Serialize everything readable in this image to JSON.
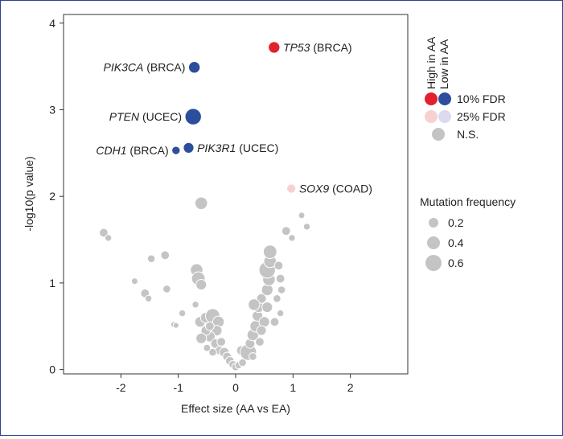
{
  "chart_data": {
    "type": "scatter",
    "title": "",
    "xlabel": "Effect size (AA vs EA)",
    "ylabel": "-log10(p value)",
    "xlim": [
      -3.0,
      3.0
    ],
    "ylim": [
      -0.05,
      4.1
    ],
    "xticks": [
      -2,
      -1,
      0,
      1,
      2
    ],
    "yticks": [
      0,
      1,
      2,
      3,
      4
    ],
    "grid": false,
    "colors": {
      "high_10fdr": "#e3202e",
      "low_10fdr": "#2d4e9c",
      "high_25fdr": "#f7d0d0",
      "low_25fdr": "#dcdaf0",
      "ns": "#c4c4c4"
    },
    "highlighted": [
      {
        "gene": "TP53",
        "cancer": "(BRCA)",
        "x": 0.67,
        "y": 3.72,
        "freq": 0.35,
        "category": "high_10fdr"
      },
      {
        "gene": "PIK3CA",
        "cancer": "(BRCA)",
        "x": -0.72,
        "y": 3.49,
        "freq": 0.35,
        "category": "low_10fdr"
      },
      {
        "gene": "PTEN",
        "cancer": "(UCEC)",
        "x": -0.74,
        "y": 2.92,
        "freq": 0.6,
        "category": "low_10fdr"
      },
      {
        "gene": "PIK3R1",
        "cancer": "(UCEC)",
        "x": -0.82,
        "y": 2.56,
        "freq": 0.3,
        "category": "low_10fdr"
      },
      {
        "gene": "CDH1",
        "cancer": "(BRCA)",
        "x": -1.04,
        "y": 2.53,
        "freq": 0.18,
        "category": "low_10fdr"
      },
      {
        "gene": "SOX9",
        "cancer": "(COAD)",
        "x": 0.97,
        "y": 2.09,
        "freq": 0.22,
        "category": "high_25fdr"
      }
    ],
    "background_points": [
      {
        "x": -0.6,
        "y": 1.92,
        "freq": 0.4
      },
      {
        "x": -2.3,
        "y": 1.58,
        "freq": 0.2
      },
      {
        "x": -2.22,
        "y": 1.52,
        "freq": 0.1
      },
      {
        "x": -1.23,
        "y": 1.32,
        "freq": 0.2
      },
      {
        "x": -1.47,
        "y": 1.28,
        "freq": 0.15
      },
      {
        "x": -1.76,
        "y": 1.02,
        "freq": 0.08
      },
      {
        "x": -1.58,
        "y": 0.88,
        "freq": 0.2
      },
      {
        "x": -1.52,
        "y": 0.82,
        "freq": 0.1
      },
      {
        "x": -1.2,
        "y": 0.93,
        "freq": 0.15
      },
      {
        "x": -0.93,
        "y": 0.65,
        "freq": 0.1
      },
      {
        "x": -1.08,
        "y": 0.52,
        "freq": 0.06
      },
      {
        "x": -1.04,
        "y": 0.51,
        "freq": 0.05
      },
      {
        "x": -0.68,
        "y": 1.15,
        "freq": 0.4
      },
      {
        "x": -0.65,
        "y": 1.05,
        "freq": 0.45
      },
      {
        "x": -0.6,
        "y": 0.98,
        "freq": 0.3
      },
      {
        "x": -0.7,
        "y": 0.75,
        "freq": 0.1
      },
      {
        "x": -0.62,
        "y": 0.55,
        "freq": 0.3
      },
      {
        "x": -0.52,
        "y": 0.6,
        "freq": 0.3
      },
      {
        "x": -0.4,
        "y": 0.62,
        "freq": 0.5
      },
      {
        "x": -0.3,
        "y": 0.55,
        "freq": 0.35
      },
      {
        "x": -0.33,
        "y": 0.45,
        "freq": 0.3
      },
      {
        "x": -0.45,
        "y": 0.38,
        "freq": 0.3
      },
      {
        "x": -0.52,
        "y": 0.45,
        "freq": 0.25
      },
      {
        "x": -0.6,
        "y": 0.36,
        "freq": 0.3
      },
      {
        "x": -0.35,
        "y": 0.3,
        "freq": 0.25
      },
      {
        "x": -0.25,
        "y": 0.32,
        "freq": 0.2
      },
      {
        "x": -0.28,
        "y": 0.22,
        "freq": 0.2
      },
      {
        "x": -0.2,
        "y": 0.2,
        "freq": 0.25
      },
      {
        "x": -0.15,
        "y": 0.15,
        "freq": 0.2
      },
      {
        "x": -0.1,
        "y": 0.1,
        "freq": 0.2
      },
      {
        "x": -0.05,
        "y": 0.06,
        "freq": 0.15
      },
      {
        "x": 0.0,
        "y": 0.03,
        "freq": 0.15
      },
      {
        "x": 0.05,
        "y": 0.05,
        "freq": 0.12
      },
      {
        "x": -0.4,
        "y": 0.2,
        "freq": 0.15
      },
      {
        "x": -0.5,
        "y": 0.25,
        "freq": 0.12
      },
      {
        "x": -0.45,
        "y": 0.5,
        "freq": 0.2
      },
      {
        "x": 0.1,
        "y": 0.22,
        "freq": 0.25
      },
      {
        "x": 0.22,
        "y": 0.2,
        "freq": 0.6
      },
      {
        "x": 0.25,
        "y": 0.3,
        "freq": 0.25
      },
      {
        "x": 0.3,
        "y": 0.4,
        "freq": 0.35
      },
      {
        "x": 0.35,
        "y": 0.5,
        "freq": 0.35
      },
      {
        "x": 0.38,
        "y": 0.62,
        "freq": 0.3
      },
      {
        "x": 0.4,
        "y": 0.72,
        "freq": 0.3
      },
      {
        "x": 0.45,
        "y": 0.82,
        "freq": 0.25
      },
      {
        "x": 0.5,
        "y": 0.55,
        "freq": 0.3
      },
      {
        "x": 0.55,
        "y": 0.72,
        "freq": 0.3
      },
      {
        "x": 0.32,
        "y": 0.75,
        "freq": 0.35
      },
      {
        "x": 0.45,
        "y": 0.45,
        "freq": 0.25
      },
      {
        "x": 0.55,
        "y": 0.92,
        "freq": 0.35
      },
      {
        "x": 0.58,
        "y": 1.04,
        "freq": 0.4
      },
      {
        "x": 0.55,
        "y": 1.15,
        "freq": 0.6
      },
      {
        "x": 0.6,
        "y": 1.25,
        "freq": 0.4
      },
      {
        "x": 0.6,
        "y": 1.36,
        "freq": 0.45
      },
      {
        "x": 0.75,
        "y": 1.2,
        "freq": 0.2
      },
      {
        "x": 0.78,
        "y": 1.05,
        "freq": 0.2
      },
      {
        "x": 0.8,
        "y": 0.92,
        "freq": 0.15
      },
      {
        "x": 0.72,
        "y": 0.82,
        "freq": 0.15
      },
      {
        "x": 0.78,
        "y": 0.65,
        "freq": 0.1
      },
      {
        "x": 0.68,
        "y": 0.55,
        "freq": 0.2
      },
      {
        "x": 0.42,
        "y": 0.32,
        "freq": 0.2
      },
      {
        "x": 0.3,
        "y": 0.15,
        "freq": 0.15
      },
      {
        "x": 0.12,
        "y": 0.08,
        "freq": 0.15
      },
      {
        "x": 0.88,
        "y": 1.6,
        "freq": 0.2
      },
      {
        "x": 0.98,
        "y": 1.52,
        "freq": 0.1
      },
      {
        "x": 1.15,
        "y": 1.78,
        "freq": 0.08
      },
      {
        "x": 1.24,
        "y": 1.65,
        "freq": 0.1
      }
    ],
    "legend_color": {
      "header_high": "High in AA",
      "header_low": "Low in AA",
      "rows": [
        {
          "label": "10% FDR",
          "high": "#e3202e",
          "low": "#2d4e9c"
        },
        {
          "label": "25% FDR",
          "high": "#f7d0d0",
          "low": "#dcdaf0"
        },
        {
          "label": "N.S.",
          "single": "#c4c4c4"
        }
      ]
    },
    "legend_size": {
      "title": "Mutation frequency",
      "entries": [
        {
          "label": "0.2",
          "freq": 0.2
        },
        {
          "label": "0.4",
          "freq": 0.4
        },
        {
          "label": "0.6",
          "freq": 0.6
        }
      ]
    }
  }
}
